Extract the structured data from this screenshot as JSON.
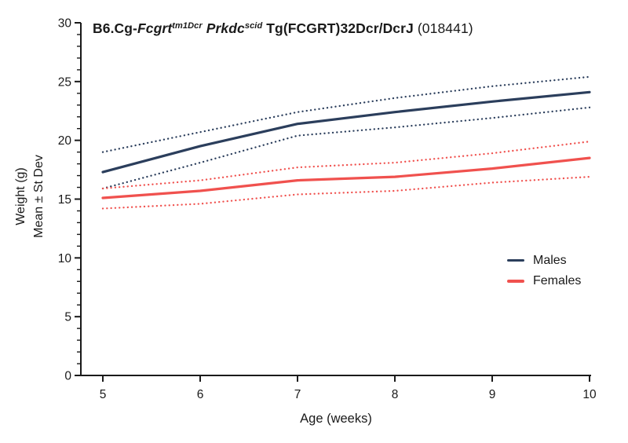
{
  "title": {
    "segments": [
      {
        "text": "B6.Cg-",
        "style": "bold"
      },
      {
        "text": "Fcgrt",
        "style": "bold-italic"
      },
      {
        "text": "tm1Dcr",
        "style": "bold-italic-sup"
      },
      {
        "text": " ",
        "style": "bold"
      },
      {
        "text": "Prkdc",
        "style": "bold-italic"
      },
      {
        "text": "scid",
        "style": "bold-italic-sup"
      },
      {
        "text": " Tg(FCGRT)32Dcr/DcrJ ",
        "style": "bold"
      },
      {
        "text": "(018441)",
        "style": "normal"
      }
    ],
    "plain_text": "B6.Cg-Fcgrt tm1Dcr Prkdc scid Tg(FCGRT)32Dcr/DcrJ (018441)"
  },
  "chart_data": {
    "type": "line",
    "title": "B6.Cg-Fcgrt tm1Dcr Prkdc scid Tg(FCGRT)32Dcr/DcrJ (018441)",
    "xlabel": "Age (weeks)",
    "ylabel_line1": "Weight (g)",
    "ylabel_line2": "Mean ± St Dev",
    "x": [
      5,
      6,
      7,
      8,
      9,
      10
    ],
    "xticks": [
      5,
      6,
      7,
      8,
      9,
      10
    ],
    "yticks": [
      0,
      5,
      10,
      15,
      20,
      25,
      30
    ],
    "y_minor_step": 1,
    "xlim": [
      5,
      10
    ],
    "ylim": [
      0,
      30
    ],
    "grid": false,
    "legend_position": "right-middle",
    "axis_color": "#1a1a1a",
    "series": [
      {
        "name": "Males +SD",
        "color": "#2b3e5c",
        "line": "dotted",
        "values": [
          19.0,
          20.7,
          22.4,
          23.6,
          24.6,
          25.4
        ]
      },
      {
        "name": "Males -SD",
        "color": "#2b3e5c",
        "line": "dotted",
        "values": [
          15.9,
          18.1,
          20.4,
          21.1,
          21.9,
          22.8
        ]
      },
      {
        "name": "Females +SD",
        "color": "#f0514e",
        "line": "dotted",
        "values": [
          15.9,
          16.6,
          17.7,
          18.1,
          18.9,
          19.9
        ]
      },
      {
        "name": "Females -SD",
        "color": "#f0514e",
        "line": "dotted",
        "values": [
          14.2,
          14.6,
          15.4,
          15.7,
          16.4,
          16.9
        ]
      },
      {
        "name": "Males",
        "color": "#2b3e5c",
        "line": "solid",
        "values": [
          17.3,
          19.5,
          21.4,
          22.4,
          23.3,
          24.1
        ]
      },
      {
        "name": "Females",
        "color": "#f0514e",
        "line": "solid",
        "values": [
          15.1,
          15.7,
          16.6,
          16.9,
          17.6,
          18.5
        ]
      }
    ]
  },
  "legend": {
    "items": [
      {
        "label": "Males",
        "color": "#2b3e5c"
      },
      {
        "label": "Females",
        "color": "#f0514e"
      }
    ]
  }
}
